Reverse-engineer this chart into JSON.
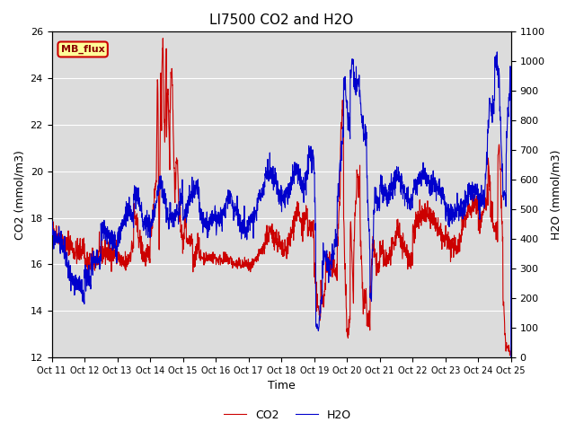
{
  "title": "LI7500 CO2 and H2O",
  "xlabel": "Time",
  "ylabel_left": "CO2 (mmol/m3)",
  "ylabel_right": "H2O (mmol/m3)",
  "ylim_left": [
    12,
    26
  ],
  "ylim_right": [
    0,
    1100
  ],
  "yticks_left": [
    12,
    14,
    16,
    18,
    20,
    22,
    24,
    26
  ],
  "yticks_right": [
    0,
    100,
    200,
    300,
    400,
    500,
    600,
    700,
    800,
    900,
    1000,
    1100
  ],
  "xtick_labels": [
    "Oct 11",
    "Oct 12",
    "Oct 13",
    "Oct 14",
    "Oct 15",
    "Oct 16",
    "Oct 17",
    "Oct 18",
    "Oct 19",
    "Oct 20",
    "Oct 21",
    "Oct 22",
    "Oct 23",
    "Oct 24",
    "Oct 25"
  ],
  "co2_color": "#cc0000",
  "h2o_color": "#0000cc",
  "background_color": "#dcdcdc",
  "annotation_text": "MB_flux",
  "annotation_bg": "#ffff99",
  "annotation_border": "#cc0000",
  "legend_co2": "CO2",
  "legend_h2o": "H2O",
  "grid_color": "#ffffff",
  "line_width": 0.8,
  "num_points": 2016,
  "title_fontsize": 11,
  "label_fontsize": 9,
  "tick_fontsize": 8
}
